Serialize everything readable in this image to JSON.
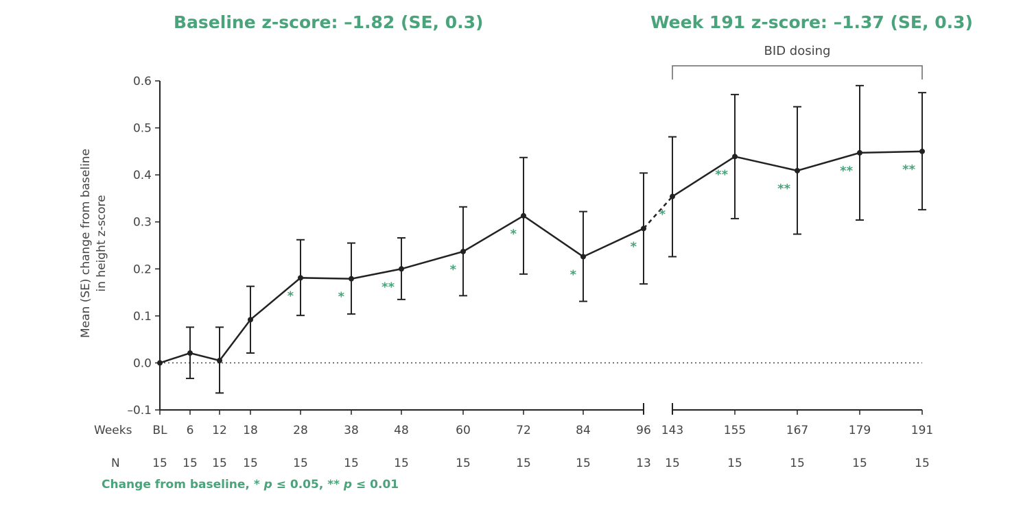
{
  "headers": {
    "baseline": "Baseline z-score: –1.82 (SE, 0.3)",
    "week191": "Week 191 z-score: –1.37 (SE, 0.3)"
  },
  "bracket_label": "BID dosing",
  "footnote": {
    "prefix": "Change from baseline, * ",
    "p1": "p",
    "mid": " ≤ 0.05, ** ",
    "p2": "p",
    "suffix": " ≤ 0.01"
  },
  "colors": {
    "line": "#222222",
    "accent": "#4aa37b",
    "axis": "#222222",
    "text": "#444444"
  },
  "chart_data": {
    "type": "line",
    "ylabel": [
      "Mean (SE) change from baseline",
      "in height z-score"
    ],
    "xlabel": "Weeks",
    "n_label": "N",
    "ylim": [
      -0.1,
      0.6
    ],
    "yticks": [
      -0.1,
      0.0,
      0.1,
      0.2,
      0.3,
      0.4,
      0.5,
      0.6
    ],
    "ytick_labels": [
      "–0.1",
      "0.0",
      "0.1",
      "0.2",
      "0.3",
      "0.4",
      "0.5",
      "0.6"
    ],
    "reference_line": 0.0,
    "axis_break_between": [
      "96",
      "143"
    ],
    "points": [
      {
        "week": "BL",
        "value": 0.0,
        "upper": 0.0,
        "lower": 0.0,
        "n": "15",
        "sig": ""
      },
      {
        "week": "6",
        "value": 0.021,
        "upper": 0.076,
        "lower": -0.033,
        "n": "15",
        "sig": ""
      },
      {
        "week": "12",
        "value": 0.005,
        "upper": 0.076,
        "lower": -0.064,
        "n": "15",
        "sig": ""
      },
      {
        "week": "18",
        "value": 0.092,
        "upper": 0.163,
        "lower": 0.021,
        "n": "15",
        "sig": ""
      },
      {
        "week": "28",
        "value": 0.181,
        "upper": 0.262,
        "lower": 0.101,
        "n": "15",
        "sig": "*"
      },
      {
        "week": "38",
        "value": 0.179,
        "upper": 0.255,
        "lower": 0.104,
        "n": "15",
        "sig": "*"
      },
      {
        "week": "48",
        "value": 0.2,
        "upper": 0.266,
        "lower": 0.135,
        "n": "15",
        "sig": "**"
      },
      {
        "week": "60",
        "value": 0.237,
        "upper": 0.332,
        "lower": 0.143,
        "n": "15",
        "sig": "*"
      },
      {
        "week": "72",
        "value": 0.313,
        "upper": 0.437,
        "lower": 0.189,
        "n": "15",
        "sig": "*"
      },
      {
        "week": "84",
        "value": 0.226,
        "upper": 0.322,
        "lower": 0.131,
        "n": "15",
        "sig": "*"
      },
      {
        "week": "96",
        "value": 0.286,
        "upper": 0.404,
        "lower": 0.168,
        "n": "13",
        "sig": "*"
      },
      {
        "week": "143",
        "value": 0.354,
        "upper": 0.481,
        "lower": 0.226,
        "n": "15",
        "sig": "*"
      },
      {
        "week": "155",
        "value": 0.439,
        "upper": 0.571,
        "lower": 0.307,
        "n": "15",
        "sig": "**"
      },
      {
        "week": "167",
        "value": 0.409,
        "upper": 0.545,
        "lower": 0.274,
        "n": "15",
        "sig": "**"
      },
      {
        "week": "179",
        "value": 0.447,
        "upper": 0.59,
        "lower": 0.304,
        "n": "15",
        "sig": "**"
      },
      {
        "week": "191",
        "value": 0.45,
        "upper": 0.575,
        "lower": 0.326,
        "n": "15",
        "sig": "**"
      }
    ],
    "bracket": {
      "from": "143",
      "to": "191"
    }
  }
}
